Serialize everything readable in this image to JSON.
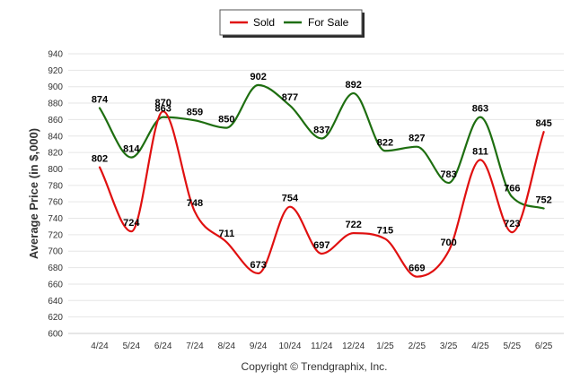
{
  "chart_data": {
    "type": "line",
    "ylabel": "Average Price (in $,000)",
    "xlabel": "",
    "categories": [
      "4/24",
      "5/24",
      "6/24",
      "7/24",
      "8/24",
      "9/24",
      "10/24",
      "11/24",
      "12/24",
      "1/25",
      "2/25",
      "3/25",
      "4/25",
      "5/25",
      "6/25"
    ],
    "ylim": [
      600,
      940
    ],
    "yticks": [
      600,
      620,
      640,
      660,
      680,
      700,
      720,
      740,
      760,
      780,
      800,
      820,
      840,
      860,
      880,
      900,
      920,
      940
    ],
    "grid": true,
    "legend_position": "top-center",
    "series": [
      {
        "name": "Sold",
        "color": "#e01010",
        "values": [
          802,
          724,
          870,
          748,
          711,
          673,
          754,
          697,
          722,
          715,
          669,
          700,
          811,
          723,
          845
        ]
      },
      {
        "name": "For Sale",
        "color": "#1e6e10",
        "values": [
          874,
          814,
          863,
          859,
          850,
          902,
          877,
          837,
          892,
          822,
          827,
          783,
          863,
          766,
          752
        ]
      }
    ]
  },
  "footer": "Copyright © Trendgraphix, Inc."
}
